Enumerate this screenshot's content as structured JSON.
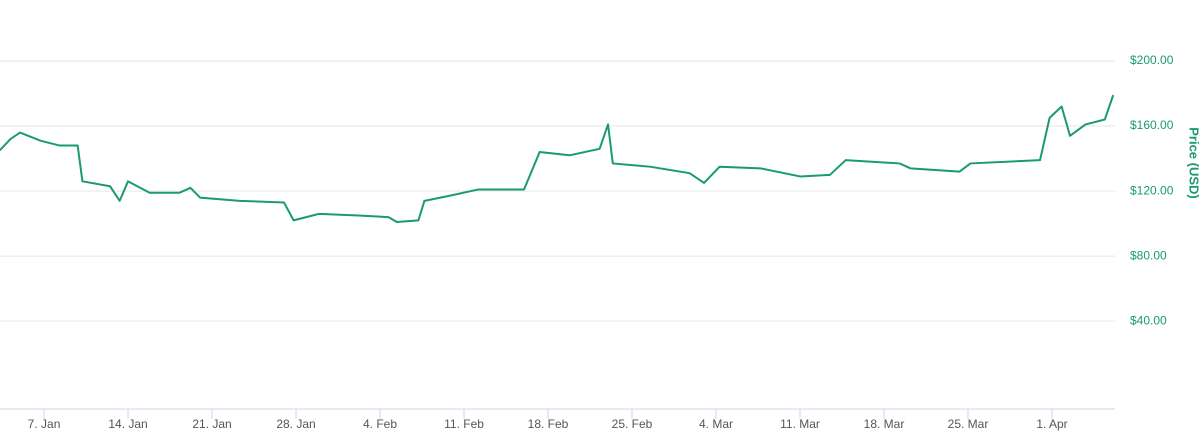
{
  "chart_data": {
    "type": "line",
    "y_axis_label": "Price (USD)",
    "series": [
      {
        "name": "Price",
        "color": "#1a9b6c",
        "x": [
          3.3,
          4.2,
          5,
          6.7,
          8.3,
          9.8,
          10.2,
          12.5,
          13.3,
          14,
          15.8,
          18.3,
          19.2,
          20,
          23.3,
          27,
          27.8,
          29.9,
          33.2,
          35.7,
          36.4,
          38.2,
          38.7,
          40.7,
          43.2,
          47,
          48.3,
          50.8,
          53.3,
          54,
          54.4,
          57.5,
          60.8,
          62,
          63.3,
          66.7,
          70,
          72.5,
          73.8,
          78.3,
          79.2,
          83.3,
          84.2,
          90,
          90.8,
          91.8,
          92.5,
          93.8,
          95.4,
          96.1
        ],
        "values": [
          145,
          152,
          156,
          151,
          148,
          148,
          126,
          123,
          114,
          126,
          119,
          119,
          122,
          116,
          114,
          113,
          102,
          106,
          105,
          104,
          101,
          102,
          114,
          117,
          121,
          121,
          144,
          142,
          146,
          161,
          137,
          135,
          131,
          125,
          135,
          134,
          129,
          130,
          139,
          137,
          134,
          132,
          137,
          139,
          165,
          172,
          154,
          161,
          164,
          179
        ]
      }
    ],
    "xlim": [
      3.33,
      96.25
    ],
    "xticks": [
      {
        "value": 7,
        "label": "7. Jan"
      },
      {
        "value": 14,
        "label": "14. Jan"
      },
      {
        "value": 21,
        "label": "21. Jan"
      },
      {
        "value": 28,
        "label": "28. Jan"
      },
      {
        "value": 35,
        "label": "4. Feb"
      },
      {
        "value": 42,
        "label": "11. Feb"
      },
      {
        "value": 49,
        "label": "18. Feb"
      },
      {
        "value": 56,
        "label": "25. Feb"
      },
      {
        "value": 63,
        "label": "4. Mar"
      },
      {
        "value": 70,
        "label": "11. Mar"
      },
      {
        "value": 77,
        "label": "18. Mar"
      },
      {
        "value": 84,
        "label": "25. Mar"
      },
      {
        "value": 91,
        "label": "1. Apr"
      }
    ],
    "ylim": [
      -14,
      237.5
    ],
    "yticks": [
      {
        "value": 40,
        "label": "$40.00"
      },
      {
        "value": 80,
        "label": "$80.00"
      },
      {
        "value": 120,
        "label": "$120.00"
      },
      {
        "value": 160,
        "label": "$160.00"
      },
      {
        "value": 200,
        "label": "$200.00"
      }
    ],
    "grid": true
  }
}
